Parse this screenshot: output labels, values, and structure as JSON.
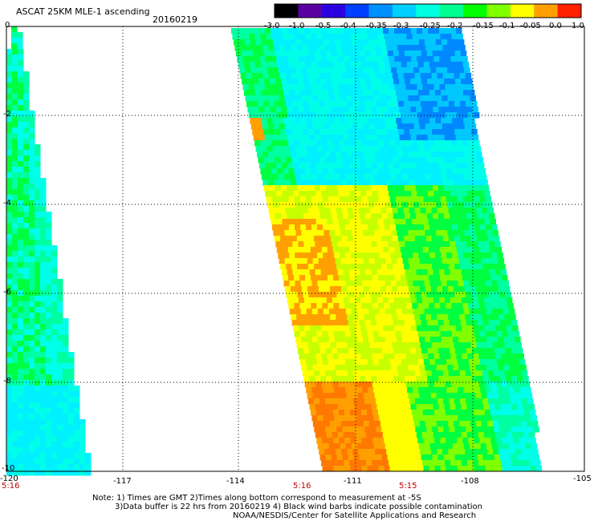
{
  "header": {
    "title": "ASCAT 25KM MLE-1 ascending",
    "date": "20160219"
  },
  "colorbar": {
    "labels": [
      "-3.0",
      "-1.0",
      "-0.5",
      "-0.4",
      "-0.35",
      "-0.3",
      "-0.25",
      "-0.2",
      "-0.15",
      "-0.1",
      "-0.05",
      "0.0",
      "1.0"
    ],
    "colors": [
      "#000000",
      "#5a00a0",
      "#2a00e0",
      "#0040ff",
      "#0090ff",
      "#00d0ff",
      "#00ffe0",
      "#00ff90",
      "#00ff00",
      "#80ff00",
      "#ffff00",
      "#ffa000",
      "#ff2000"
    ]
  },
  "axes": {
    "x_labels": [
      "-120",
      "-117",
      "-114",
      "-111",
      "-108",
      "-105"
    ],
    "y_labels": [
      "0",
      "-2",
      "-4",
      "-6",
      "-8",
      "-10"
    ],
    "times": [
      "5:16",
      "5:16",
      "5:15"
    ]
  },
  "footer": {
    "line1": "Note: 1) Times are GMT 2)Times along bottom correspond to measurement at -5S",
    "line2": "3)Data buffer is 22 hrs from 20160219 4) Black wind barbs indicate possible contamination",
    "line3": "NOAA/NESDIS/Center for Satellite Applications and Research"
  }
}
